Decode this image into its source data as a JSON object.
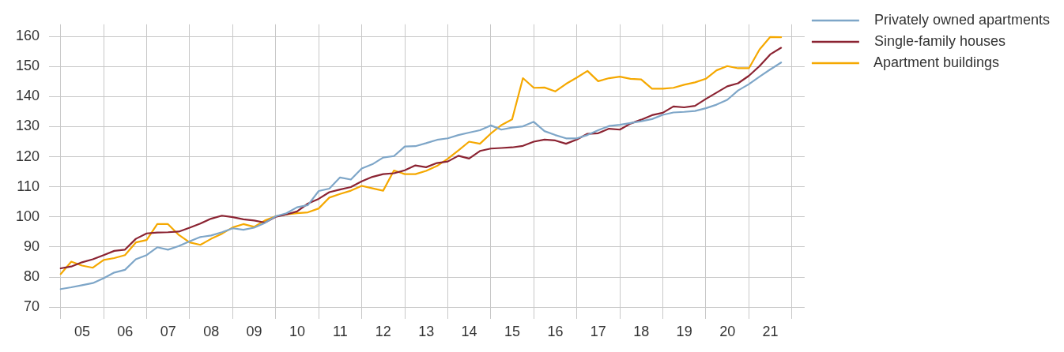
{
  "chart_data": {
    "type": "line",
    "x": [
      "2005-01",
      "2005-04",
      "2005-07",
      "2005-10",
      "2006-01",
      "2006-04",
      "2006-07",
      "2006-10",
      "2007-01",
      "2007-04",
      "2007-07",
      "2007-10",
      "2008-01",
      "2008-04",
      "2008-07",
      "2008-10",
      "2009-01",
      "2009-04",
      "2009-07",
      "2009-10",
      "2010-01",
      "2010-04",
      "2010-07",
      "2010-10",
      "2011-01",
      "2011-04",
      "2011-07",
      "2011-10",
      "2012-01",
      "2012-04",
      "2012-07",
      "2012-10",
      "2013-01",
      "2013-04",
      "2013-07",
      "2013-10",
      "2014-01",
      "2014-04",
      "2014-07",
      "2014-10",
      "2015-01",
      "2015-04",
      "2015-07",
      "2015-10",
      "2016-01",
      "2016-04",
      "2016-07",
      "2016-10",
      "2017-01",
      "2017-04",
      "2017-07",
      "2017-10",
      "2018-01",
      "2018-04",
      "2018-07",
      "2018-10",
      "2019-01",
      "2019-04",
      "2019-07",
      "2019-10",
      "2020-01",
      "2020-04",
      "2020-07",
      "2020-10",
      "2021-01",
      "2021-04",
      "2021-07",
      "2021-10"
    ],
    "series": [
      {
        "name": "Privately owned apartments",
        "color": "#7ea6c8",
        "values": [
          76.0,
          76.6,
          77.3,
          78.0,
          79.6,
          81.5,
          82.4,
          85.9,
          87.3,
          89.9,
          89.1,
          90.3,
          91.9,
          93.3,
          93.8,
          94.9,
          96.2,
          95.7,
          96.4,
          98.0,
          100.2,
          101.2,
          103.2,
          103.9,
          108.6,
          109.4,
          113.1,
          112.4,
          116.1,
          117.5,
          119.7,
          120.2,
          123.4,
          123.5,
          124.5,
          125.6,
          126.1,
          127.2,
          128.0,
          128.8,
          130.4,
          129.0,
          129.7,
          130.1,
          131.6,
          128.5,
          127.2,
          126.1,
          126.1,
          127.2,
          128.8,
          130.2,
          130.6,
          131.2,
          131.8,
          132.5,
          133.9,
          134.7,
          134.9,
          135.2,
          136.1,
          137.3,
          138.9,
          142.0,
          144.1,
          146.6,
          149.0,
          151.3
        ]
      },
      {
        "name": "Single-family houses",
        "color": "#8b2332",
        "values": [
          82.9,
          83.5,
          84.9,
          85.9,
          87.3,
          88.7,
          89.1,
          92.7,
          94.5,
          94.8,
          94.9,
          95.1,
          96.4,
          97.8,
          99.4,
          100.4,
          99.9,
          99.2,
          98.8,
          98.1,
          100.0,
          100.8,
          101.8,
          104.4,
          106.0,
          108.2,
          109.1,
          109.9,
          111.8,
          113.3,
          114.2,
          114.5,
          115.5,
          117.1,
          116.5,
          117.9,
          118.4,
          120.3,
          119.4,
          121.9,
          122.7,
          122.9,
          123.1,
          123.6,
          125.0,
          125.7,
          125.4,
          124.3,
          125.7,
          127.6,
          127.8,
          129.3,
          129.0,
          131.0,
          132.3,
          133.8,
          134.6,
          136.7,
          136.4,
          136.9,
          139.2,
          141.3,
          143.4,
          144.4,
          146.9,
          150.1,
          154.0,
          156.2
        ]
      },
      {
        "name": "Apartment buildings",
        "color": "#f5a800",
        "values": [
          81.0,
          85.1,
          83.8,
          83.1,
          85.7,
          86.3,
          87.3,
          91.5,
          92.3,
          97.6,
          97.6,
          94.0,
          91.5,
          90.7,
          92.7,
          94.4,
          96.5,
          97.6,
          96.7,
          98.8,
          100.2,
          100.8,
          101.2,
          101.5,
          102.8,
          106.4,
          107.6,
          108.7,
          110.3,
          109.5,
          108.7,
          115.4,
          114.2,
          114.2,
          115.3,
          116.9,
          119.3,
          122.1,
          125.0,
          124.3,
          127.7,
          130.5,
          132.4,
          146.1,
          142.9,
          143.0,
          141.7,
          144.2,
          146.3,
          148.5,
          145.1,
          146.1,
          146.6,
          145.9,
          145.7,
          142.6,
          142.6,
          142.9,
          143.9,
          144.7,
          145.9,
          148.7,
          150.1,
          149.4,
          149.4,
          155.6,
          159.8,
          159.7
        ]
      }
    ],
    "xlim": [
      "2004-09-24",
      "2022-04-19"
    ],
    "xticks": [
      {
        "value": "2005-01-01",
        "label": null
      },
      {
        "value": "2005-07-02",
        "label": "05"
      },
      {
        "value": "2006-01-01",
        "label": null
      },
      {
        "value": "2006-07-02",
        "label": "06"
      },
      {
        "value": "2007-01-01",
        "label": null
      },
      {
        "value": "2007-07-02",
        "label": "07"
      },
      {
        "value": "2008-01-01",
        "label": null
      },
      {
        "value": "2008-07-02",
        "label": "08"
      },
      {
        "value": "2009-01-01",
        "label": null
      },
      {
        "value": "2009-07-02",
        "label": "09"
      },
      {
        "value": "2010-01-01",
        "label": null
      },
      {
        "value": "2010-07-02",
        "label": "10"
      },
      {
        "value": "2011-01-01",
        "label": null
      },
      {
        "value": "2011-07-02",
        "label": "11"
      },
      {
        "value": "2012-01-01",
        "label": null
      },
      {
        "value": "2012-07-02",
        "label": "12"
      },
      {
        "value": "2013-01-01",
        "label": null
      },
      {
        "value": "2013-07-02",
        "label": "13"
      },
      {
        "value": "2014-01-01",
        "label": null
      },
      {
        "value": "2014-07-02",
        "label": "14"
      },
      {
        "value": "2015-01-01",
        "label": null
      },
      {
        "value": "2015-07-02",
        "label": "15"
      },
      {
        "value": "2016-01-01",
        "label": null
      },
      {
        "value": "2016-07-02",
        "label": "16"
      },
      {
        "value": "2017-01-01",
        "label": null
      },
      {
        "value": "2017-07-02",
        "label": "17"
      },
      {
        "value": "2018-01-01",
        "label": null
      },
      {
        "value": "2018-07-02",
        "label": "18"
      },
      {
        "value": "2019-01-01",
        "label": null
      },
      {
        "value": "2019-07-02",
        "label": "19"
      },
      {
        "value": "2020-01-01",
        "label": null
      },
      {
        "value": "2020-07-02",
        "label": "20"
      },
      {
        "value": "2021-01-01",
        "label": null
      },
      {
        "value": "2021-07-02",
        "label": "21"
      },
      {
        "value": "2022-01-01",
        "label": null
      }
    ],
    "ylim": [
      66,
      164
    ],
    "yticks": [
      70,
      80,
      90,
      100,
      110,
      120,
      130,
      140,
      150,
      160
    ],
    "grid": true,
    "legend": "top right",
    "marker": "none",
    "line_style": "solid"
  }
}
